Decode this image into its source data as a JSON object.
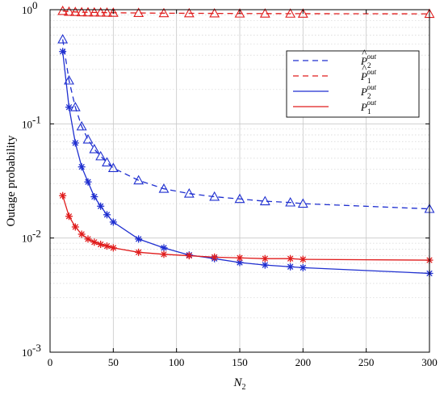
{
  "chart_data": {
    "type": "line",
    "xlabel": "N",
    "xlabel_sub": "2",
    "ylabel": "Outage probability",
    "xlim": [
      0,
      300
    ],
    "ylim": [
      0.001,
      1
    ],
    "yscale": "log",
    "grid": true,
    "legend_position": "top-right",
    "x_ticks": [
      0,
      50,
      100,
      150,
      200,
      250,
      300
    ],
    "x_tick_labels": [
      "0",
      "50",
      "100",
      "150",
      "200",
      "250",
      "300"
    ],
    "y_ticks": [
      0.001,
      0.01,
      0.1,
      1
    ],
    "y_tick_labels": [
      {
        "base": "10",
        "exp": "-3"
      },
      {
        "base": "10",
        "exp": "-2"
      },
      {
        "base": "10",
        "exp": "-1"
      },
      {
        "base": "10",
        "exp": "0"
      }
    ],
    "series": [
      {
        "legend": {
          "main": "P",
          "hat": true,
          "sub": "2",
          "sup": "out"
        },
        "color": "#1f2fd0",
        "dash": "7,5",
        "marker": "triangle",
        "x": [
          10,
          15,
          20,
          25,
          30,
          35,
          40,
          45,
          50,
          70,
          90,
          110,
          130,
          150,
          170,
          190,
          200,
          300
        ],
        "y": [
          0.55,
          0.24,
          0.14,
          0.095,
          0.073,
          0.06,
          0.052,
          0.046,
          0.041,
          0.032,
          0.027,
          0.0245,
          0.023,
          0.022,
          0.021,
          0.0205,
          0.02,
          0.018
        ]
      },
      {
        "legend": {
          "main": "P",
          "hat": true,
          "sub": "1",
          "sup": "out"
        },
        "color": "#e01c1c",
        "dash": "7,5",
        "marker": "triangle",
        "x": [
          10,
          15,
          20,
          25,
          30,
          35,
          40,
          45,
          50,
          70,
          90,
          110,
          130,
          150,
          170,
          190,
          200,
          300
        ],
        "y": [
          0.975,
          0.96,
          0.955,
          0.95,
          0.948,
          0.946,
          0.944,
          0.942,
          0.94,
          0.936,
          0.932,
          0.93,
          0.928,
          0.926,
          0.925,
          0.924,
          0.923,
          0.92
        ]
      },
      {
        "legend": {
          "main": "P",
          "hat": false,
          "sub": "2",
          "sup": "out"
        },
        "color": "#1f2fd0",
        "dash": "",
        "marker": "star",
        "x": [
          10,
          15,
          20,
          25,
          30,
          35,
          40,
          45,
          50,
          70,
          90,
          110,
          130,
          150,
          170,
          190,
          200,
          300
        ],
        "y": [
          0.43,
          0.14,
          0.068,
          0.042,
          0.031,
          0.023,
          0.019,
          0.016,
          0.0138,
          0.0098,
          0.0082,
          0.0071,
          0.0066,
          0.0061,
          0.0058,
          0.0056,
          0.0055,
          0.0049
        ]
      },
      {
        "legend": {
          "main": "P",
          "hat": false,
          "sub": "1",
          "sup": "out"
        },
        "color": "#e01c1c",
        "dash": "",
        "marker": "star",
        "x": [
          10,
          15,
          20,
          25,
          30,
          35,
          40,
          45,
          50,
          70,
          90,
          110,
          130,
          150,
          170,
          190,
          200,
          300
        ],
        "y": [
          0.0235,
          0.0155,
          0.0125,
          0.0108,
          0.0098,
          0.0092,
          0.0088,
          0.0085,
          0.0082,
          0.0075,
          0.0072,
          0.007,
          0.0068,
          0.0067,
          0.0066,
          0.0066,
          0.0065,
          0.0064
        ]
      }
    ]
  }
}
